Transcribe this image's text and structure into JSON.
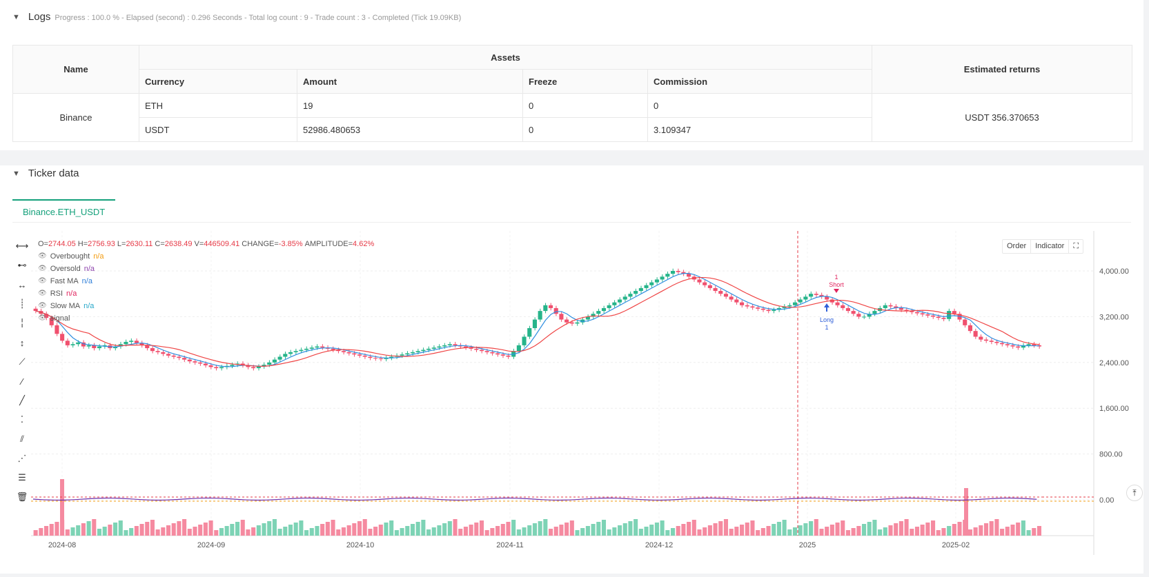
{
  "logs": {
    "title": "Logs",
    "meta": "Progress : 100.0 % - Elapsed (second) : 0.296  Seconds - Total log count : 9 - Trade count : 3 - Completed (Tick 19.09KB)"
  },
  "assets_table": {
    "header_name": "Name",
    "header_assets": "Assets",
    "header_returns": "Estimated returns",
    "sub_headers": [
      "Currency",
      "Amount",
      "Freeze",
      "Commission"
    ],
    "exchange": "Binance",
    "rows": [
      {
        "currency": "ETH",
        "amount": "19",
        "freeze": "0",
        "commission": "0"
      },
      {
        "currency": "USDT",
        "amount": "52986.480653",
        "freeze": "0",
        "commission": "3.109347"
      }
    ],
    "estimated_returns": "USDT 356.370653"
  },
  "ticker": {
    "title": "Ticker data",
    "tab": "Binance.ETH_USDT"
  },
  "legend": {
    "ohlc": [
      {
        "label": "O=",
        "value": "2744.05"
      },
      {
        "label": "H=",
        "value": "2756.93"
      },
      {
        "label": "L=",
        "value": "2630.11"
      },
      {
        "label": "C=",
        "value": "2638.49"
      },
      {
        "label": "V=",
        "value": "446509.41"
      },
      {
        "label": "CHANGE=",
        "value": "-3.85%"
      },
      {
        "label": "AMPLITUDE=",
        "value": "4.62%"
      }
    ],
    "series": [
      {
        "name": "Overbought",
        "value": "n/a",
        "color": "#f39c12"
      },
      {
        "name": "Oversold",
        "value": "n/a",
        "color": "#8e44ad"
      },
      {
        "name": "Fast MA",
        "value": "n/a",
        "color": "#2f7fd8"
      },
      {
        "name": "RSI",
        "value": "n/a",
        "color": "#e0245e"
      },
      {
        "name": "Slow MA",
        "value": "n/a",
        "color": "#26a7c9"
      },
      {
        "name": "signal",
        "value": "",
        "color": "#555555"
      }
    ]
  },
  "chart_buttons": {
    "order": "Order",
    "indicator": "Indicator",
    "fullscreen": "⛶"
  },
  "chart_data": {
    "type": "candlestick",
    "y_ticks": [
      "4,000.00",
      "3,200.00",
      "2,400.00",
      "1,600.00",
      "800.00",
      "0.00"
    ],
    "y_tick_values": [
      4000,
      3200,
      2400,
      1600,
      800,
      0
    ],
    "x_ticks": [
      "2024-08",
      "2024-09",
      "2024-10",
      "2024-11",
      "2024-12",
      "2025",
      "2025-02"
    ],
    "ylim": [
      0,
      4800
    ],
    "trade_markers": [
      {
        "label": "Long",
        "qty": "1",
        "color": "#2f5fd8"
      },
      {
        "label": "Short",
        "qty": "1",
        "color": "#e0245e"
      }
    ],
    "close_series": [
      3300,
      3250,
      3180,
      3050,
      2900,
      2780,
      2700,
      2720,
      2750,
      2680,
      2700,
      2650,
      2680,
      2700,
      2650,
      2680,
      2720,
      2760,
      2780,
      2740,
      2700,
      2650,
      2600,
      2580,
      2550,
      2520,
      2500,
      2480,
      2450,
      2420,
      2400,
      2380,
      2350,
      2320,
      2300,
      2320,
      2340,
      2360,
      2380,
      2350,
      2320,
      2300,
      2330,
      2360,
      2400,
      2450,
      2500,
      2550,
      2580,
      2600,
      2620,
      2640,
      2660,
      2680,
      2660,
      2640,
      2620,
      2600,
      2580,
      2560,
      2540,
      2520,
      2500,
      2480,
      2470,
      2460,
      2480,
      2500,
      2520,
      2540,
      2560,
      2580,
      2600,
      2620,
      2640,
      2660,
      2680,
      2700,
      2720,
      2700,
      2680,
      2660,
      2640,
      2620,
      2600,
      2580,
      2560,
      2540,
      2520,
      2500,
      2600,
      2700,
      2850,
      3000,
      3150,
      3300,
      3400,
      3350,
      3250,
      3150,
      3100,
      3080,
      3100,
      3150,
      3200,
      3250,
      3300,
      3350,
      3400,
      3450,
      3500,
      3550,
      3600,
      3650,
      3700,
      3750,
      3800,
      3850,
      3900,
      3950,
      4000,
      3980,
      3950,
      3900,
      3850,
      3800,
      3750,
      3700,
      3650,
      3600,
      3550,
      3500,
      3450,
      3400,
      3380,
      3360,
      3340,
      3320,
      3300,
      3320,
      3350,
      3380,
      3400,
      3450,
      3500,
      3550,
      3600,
      3580,
      3550,
      3500,
      3450,
      3400,
      3350,
      3300,
      3250,
      3200,
      3200,
      3250,
      3300,
      3350,
      3400,
      3380,
      3350,
      3320,
      3300,
      3280,
      3260,
      3240,
      3220,
      3200,
      3180,
      3160,
      3300,
      3250,
      3150,
      3050,
      2950,
      2850,
      2800,
      2780,
      2760,
      2740,
      2720,
      2700,
      2680,
      2660,
      2700,
      2720,
      2700,
      2680
    ]
  }
}
